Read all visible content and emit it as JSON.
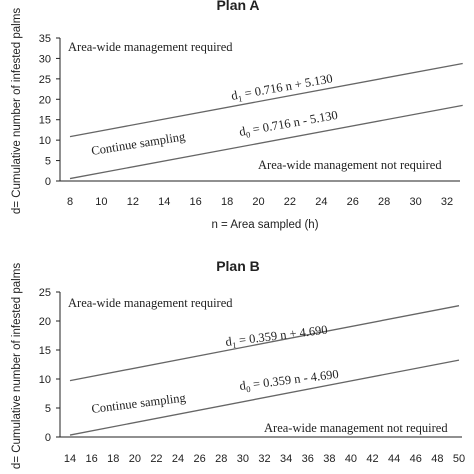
{
  "chart_data": [
    {
      "type": "line",
      "title": "Plan A",
      "xlabel": "n = Area sampled (h)",
      "ylabel": "d= Cumulative number of infested palms",
      "xlim": [
        8,
        33
      ],
      "ylim": [
        0,
        35
      ],
      "x_ticks": [
        "8",
        "10",
        "12",
        "14",
        "16",
        "18",
        "20",
        "22",
        "24",
        "26",
        "28",
        "30",
        "32"
      ],
      "y_ticks": [
        "0",
        "5",
        "10",
        "15",
        "20",
        "25",
        "30",
        "35"
      ],
      "series": [
        {
          "name": "d1",
          "slope": 0.716,
          "intercept": 5.13,
          "label_pre": "d",
          "label_sub": "1",
          "label_post": " = 0.716 n + 5.130"
        },
        {
          "name": "d0",
          "slope": 0.716,
          "intercept": -5.13,
          "label_pre": "d",
          "label_sub": "0",
          "label_post": " = 0.716 n - 5.130"
        }
      ],
      "regions": {
        "upper": "Area-wide management required",
        "middle": "Continue sampling",
        "lower": "Area-wide management not required"
      },
      "grid": false,
      "legend": "none"
    },
    {
      "type": "line",
      "title": "Plan B",
      "xlabel": "",
      "ylabel": "d= Cumulative number of infested palms",
      "xlim": [
        14,
        50
      ],
      "ylim": [
        0,
        25
      ],
      "x_ticks": [
        "14",
        "16",
        "18",
        "20",
        "22",
        "24",
        "26",
        "28",
        "30",
        "32",
        "34",
        "36",
        "38",
        "40",
        "42",
        "44",
        "46",
        "48",
        "50"
      ],
      "y_ticks": [
        "0",
        "5",
        "10",
        "15",
        "20",
        "25"
      ],
      "series": [
        {
          "name": "d1",
          "slope": 0.359,
          "intercept": 4.69,
          "label_pre": "d",
          "label_sub": "1",
          "label_post": " = 0.359 n + 4.690"
        },
        {
          "name": "d0",
          "slope": 0.359,
          "intercept": -4.69,
          "label_pre": "d",
          "label_sub": "0",
          "label_post": " = 0.359 n - 4.690"
        }
      ],
      "regions": {
        "upper": "Area-wide management required",
        "middle": "Continue sampling",
        "lower": "Area-wide management not required"
      },
      "grid": false,
      "legend": "none"
    }
  ]
}
